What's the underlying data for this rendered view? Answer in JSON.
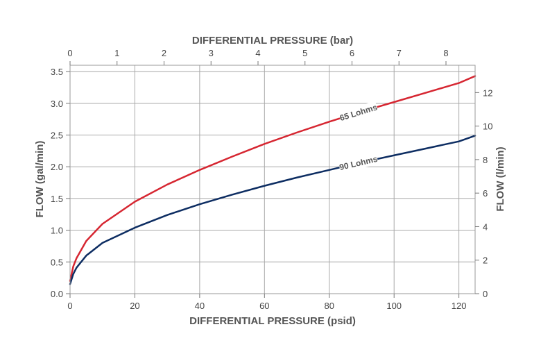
{
  "chart_data": {
    "type": "line",
    "title": "",
    "x_bottom": {
      "label": "DIFFERENTIAL PRESSURE (psid)",
      "range": [
        0,
        125
      ],
      "ticks": [
        0,
        20,
        40,
        60,
        80,
        100,
        120
      ]
    },
    "x_top": {
      "label": "DIFFERENTIAL PRESSURE (bar)",
      "range": [
        0,
        8.62
      ],
      "ticks": [
        0,
        1,
        2,
        3,
        4,
        5,
        6,
        7,
        8
      ]
    },
    "y_left": {
      "label": "FLOW (gal/min)",
      "range": [
        0,
        3.6
      ],
      "ticks": [
        "0.0",
        "0.5",
        "1.0",
        "1.5",
        "2.0",
        "2.5",
        "3.0",
        "3.5"
      ]
    },
    "y_right": {
      "label": "FLOW (l/min)",
      "range": [
        0,
        13.63
      ],
      "ticks": [
        0,
        2,
        4,
        6,
        8,
        10,
        12
      ]
    },
    "grid": true,
    "series": [
      {
        "name": "65 Lohms",
        "color": "#d62631",
        "x": [
          0,
          1,
          2,
          5,
          10,
          20,
          30,
          40,
          50,
          60,
          70,
          80,
          90,
          100,
          110,
          120,
          125
        ],
        "y": [
          0.2,
          0.43,
          0.56,
          0.83,
          1.1,
          1.45,
          1.72,
          1.95,
          2.16,
          2.36,
          2.54,
          2.71,
          2.87,
          3.02,
          3.17,
          3.32,
          3.43
        ]
      },
      {
        "name": "90 Lohms",
        "color": "#0d2d62",
        "x": [
          0,
          1,
          2,
          5,
          10,
          20,
          30,
          40,
          50,
          60,
          70,
          80,
          90,
          100,
          110,
          120,
          125
        ],
        "y": [
          0.15,
          0.31,
          0.41,
          0.6,
          0.8,
          1.04,
          1.24,
          1.41,
          1.56,
          1.7,
          1.83,
          1.95,
          2.07,
          2.18,
          2.29,
          2.4,
          2.49
        ]
      }
    ],
    "annotations": [
      {
        "text": "65 Lohms",
        "series": 0,
        "at_x": 89
      },
      {
        "text": "90 Lohms",
        "series": 1,
        "at_x": 89
      }
    ]
  }
}
